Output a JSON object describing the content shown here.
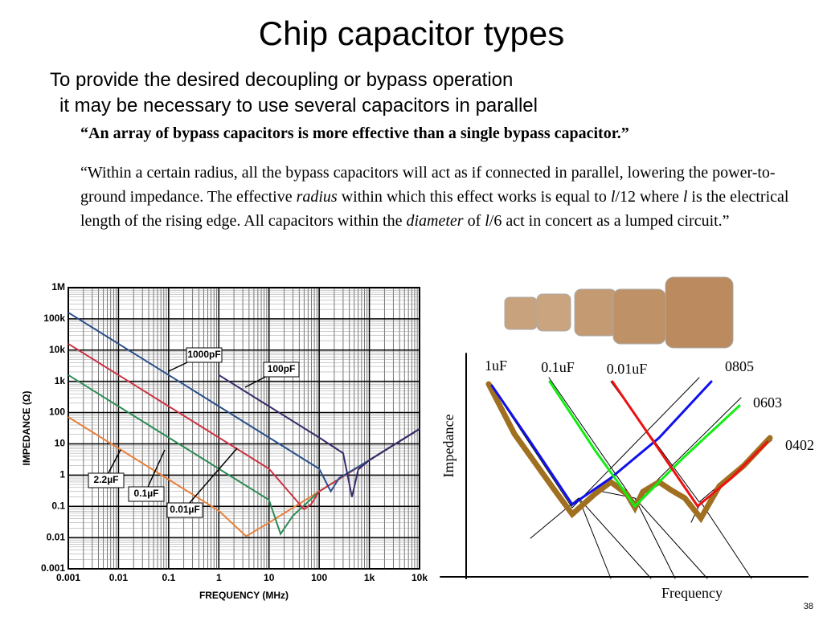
{
  "header": {
    "title": "Chip capacitor types",
    "lines": [
      "To provide the desired decoupling or bypass operation",
      "it may be necessary to use several capacitors in parallel"
    ]
  },
  "quote": "“An array of bypass capacitors is more effective than a single bypass capacitor.”",
  "paragraph": [
    "“Within a certain radius, all the bypass capacitors will act as if connected in parallel, lowering the power-to-ground impedance.  The effective ",
    "radius",
    " within which this effect works is equal to ",
    "l",
    "/12 where ",
    "l",
    " is the electrical length of the rising edge.  All capacitors within the ",
    "diameter",
    " of ",
    "l",
    "/6 act in concert as a lumped circuit.”"
  ],
  "chart_data": {
    "type": "line",
    "xlabel": "FREQUENCY (MHz)",
    "ylabel": "IMPEDANCE (Ω)",
    "xlog": true,
    "ylog": true,
    "grid": true,
    "xlim": [
      0.001,
      10000
    ],
    "ylim": [
      0.001,
      1000000
    ],
    "xticks": [
      0.001,
      0.01,
      0.1,
      1,
      10,
      100,
      {
        "value": 1000,
        "label": "1k"
      },
      {
        "value": 10000,
        "label": "10k"
      }
    ],
    "yticks": [
      0.001,
      0.01,
      0.1,
      1,
      10,
      100,
      {
        "value": 1000,
        "label": "1k"
      },
      {
        "value": 10000,
        "label": "10k"
      },
      {
        "value": 100000,
        "label": "100k"
      },
      {
        "value": 1000000,
        "label": "1M"
      }
    ],
    "series": [
      {
        "name": "2.2µF",
        "color": "#e8803c",
        "x": [
          0.001,
          0.01,
          0.1,
          1,
          3.5,
          10,
          100,
          1000,
          10000
        ],
        "values": [
          72,
          7.2,
          0.72,
          0.072,
          0.011,
          0.03,
          0.3,
          3,
          30
        ]
      },
      {
        "name": "0.1µF",
        "color": "#2e8b57",
        "x": [
          0.001,
          0.01,
          0.1,
          1,
          10,
          17,
          30,
          100,
          1000,
          10000
        ],
        "values": [
          1590,
          159,
          15.9,
          1.59,
          0.16,
          0.013,
          0.05,
          0.3,
          3,
          30
        ]
      },
      {
        "name": "0.01µF",
        "color": "#cc3344",
        "x": [
          0.001,
          0.01,
          0.1,
          1,
          10,
          50,
          70,
          100,
          1000,
          10000
        ],
        "values": [
          15900,
          1590,
          159,
          15.9,
          1.59,
          0.08,
          0.12,
          0.3,
          3,
          30
        ]
      },
      {
        "name": "1000pF",
        "color": "#2a4f8a",
        "x": [
          0.001,
          0.01,
          0.1,
          1,
          10,
          100,
          170,
          250,
          1000,
          10000
        ],
        "values": [
          159000,
          15900,
          1590,
          159,
          15.9,
          1.59,
          0.3,
          0.8,
          3,
          30
        ]
      },
      {
        "name": "100pF",
        "color": "#3a2a6a",
        "x": [
          1,
          10,
          100,
          300,
          450,
          600,
          1000,
          10000
        ],
        "values": [
          1590,
          159,
          15.9,
          5,
          0.2,
          1.5,
          3,
          30
        ]
      }
    ]
  },
  "diagram": {
    "curves": [
      "1uF",
      "0.1uF",
      "0.01uF"
    ],
    "sizes": [
      "0805",
      "0603",
      "0402"
    ],
    "ylabel": "Impedance",
    "xlabel": "Frequency"
  },
  "page_number": "38"
}
